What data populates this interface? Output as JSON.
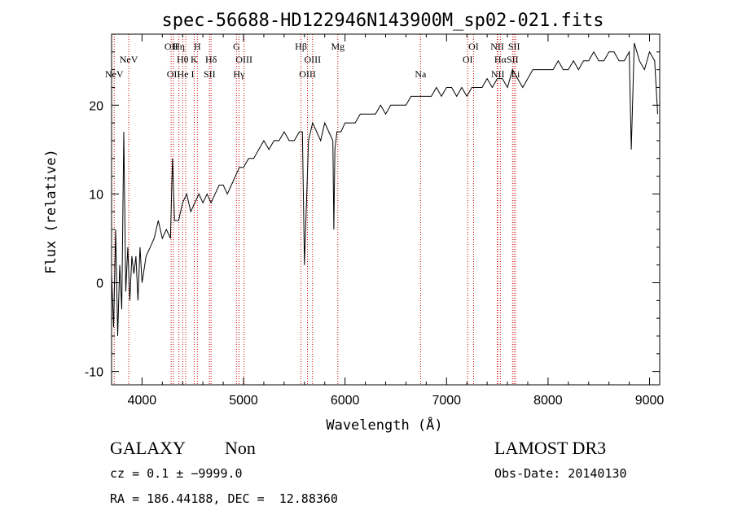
{
  "chart_data": {
    "type": "line",
    "title": "spec-56688-HD122946N143900M_sp02-021.fits",
    "xlabel": "Wavelength (Å)",
    "ylabel": "Flux (relative)",
    "xlim": [
      3700,
      9100
    ],
    "ylim": [
      -11.5,
      28
    ],
    "x_ticks": [
      4000,
      5000,
      6000,
      7000,
      8000,
      9000
    ],
    "y_ticks": [
      -10,
      0,
      10,
      20
    ],
    "line_color": "#cc0000",
    "series": [
      {
        "name": "flux",
        "x": [
          3700,
          3720,
          3740,
          3760,
          3780,
          3800,
          3820,
          3840,
          3860,
          3880,
          3900,
          3920,
          3940,
          3960,
          3980,
          4000,
          4040,
          4080,
          4120,
          4160,
          4200,
          4240,
          4280,
          4300,
          4320,
          4360,
          4400,
          4440,
          4480,
          4520,
          4560,
          4600,
          4640,
          4680,
          4720,
          4760,
          4800,
          4840,
          4880,
          4920,
          4960,
          5000,
          5050,
          5100,
          5150,
          5200,
          5250,
          5300,
          5350,
          5400,
          5450,
          5500,
          5550,
          5580,
          5600,
          5640,
          5680,
          5720,
          5760,
          5800,
          5840,
          5880,
          5890,
          5900,
          5920,
          5960,
          6000,
          6050,
          6100,
          6150,
          6200,
          6250,
          6300,
          6350,
          6400,
          6450,
          6500,
          6550,
          6600,
          6650,
          6700,
          6750,
          6800,
          6850,
          6900,
          6950,
          7000,
          7050,
          7100,
          7150,
          7200,
          7250,
          7300,
          7350,
          7400,
          7450,
          7500,
          7550,
          7600,
          7650,
          7700,
          7750,
          7800,
          7850,
          7900,
          7950,
          8000,
          8050,
          8100,
          8150,
          8200,
          8250,
          8300,
          8350,
          8400,
          8450,
          8500,
          8550,
          8600,
          8650,
          8700,
          8750,
          8800,
          8820,
          8850,
          8900,
          8950,
          9000,
          9050,
          9080
        ],
        "y": [
          1,
          -5,
          6,
          -6,
          2,
          -3,
          17,
          -1,
          4,
          -2,
          3,
          1,
          3,
          -2,
          4,
          0,
          3,
          4,
          5,
          7,
          5,
          6,
          5,
          14,
          7,
          7,
          9,
          10,
          8,
          9,
          10,
          9,
          10,
          9,
          10,
          11,
          11,
          10,
          11,
          12,
          13,
          13,
          14,
          14,
          15,
          16,
          15,
          16,
          16,
          17,
          16,
          16,
          17,
          17,
          2,
          16,
          18,
          17,
          16,
          18,
          17,
          16,
          6,
          15,
          17,
          17,
          18,
          18,
          18,
          19,
          19,
          19,
          19,
          20,
          19,
          20,
          20,
          20,
          20,
          21,
          21,
          21,
          21,
          21,
          22,
          21,
          22,
          22,
          21,
          22,
          21,
          22,
          22,
          22,
          23,
          22,
          23,
          23,
          22,
          24,
          23,
          22,
          23,
          24,
          24,
          24,
          24,
          24,
          25,
          24,
          24,
          25,
          24,
          25,
          25,
          26,
          25,
          25,
          26,
          26,
          25,
          25,
          26,
          15,
          27,
          25,
          24,
          26,
          25,
          19
        ]
      }
    ],
    "emission_lines": [
      {
        "label": "NeV",
        "wave": 3726,
        "row": 3
      },
      {
        "label": "NeV",
        "wave": 3869,
        "row": 2
      },
      {
        "label": "OII",
        "wave": 4287,
        "row": 1
      },
      {
        "label": "OII",
        "wave": 4310,
        "row": 3
      },
      {
        "label": "Hη",
        "wave": 4363,
        "row": 1
      },
      {
        "label": "Hθ",
        "wave": 4400,
        "row": 2
      },
      {
        "label": "He I",
        "wave": 4430,
        "row": 3
      },
      {
        "label": "H",
        "wave": 4545,
        "row": 1
      },
      {
        "label": "K",
        "wave": 4513,
        "row": 2
      },
      {
        "label": "Hδ",
        "wave": 4680,
        "row": 2
      },
      {
        "label": "SII",
        "wave": 4665,
        "row": 3
      },
      {
        "label": "G",
        "wave": 4930,
        "row": 1
      },
      {
        "label": "OIII",
        "wave": 5005,
        "row": 2
      },
      {
        "label": "Hγ",
        "wave": 4955,
        "row": 3
      },
      {
        "label": "Hβ",
        "wave": 5566,
        "row": 1
      },
      {
        "label": "OIII",
        "wave": 5680,
        "row": 2
      },
      {
        "label": "OIII",
        "wave": 5630,
        "row": 3
      },
      {
        "label": "Mg",
        "wave": 5929,
        "row": 1
      },
      {
        "label": "Na",
        "wave": 6744,
        "row": 3
      },
      {
        "label": "OI",
        "wave": 7266,
        "row": 1
      },
      {
        "label": "OI",
        "wave": 7208,
        "row": 2
      },
      {
        "label": "NII",
        "wave": 7500,
        "row": 1
      },
      {
        "label": "Hα",
        "wave": 7530,
        "row": 2
      },
      {
        "label": "NII",
        "wave": 7505,
        "row": 3
      },
      {
        "label": "SII",
        "wave": 7665,
        "row": 1
      },
      {
        "label": "SII",
        "wave": 7650,
        "row": 2
      },
      {
        "label": "Li",
        "wave": 7680,
        "row": 3
      }
    ]
  },
  "info": {
    "object_class": "GALAXY",
    "subclass": "Non",
    "redshift": "cz = 0.1 ± −9999.0",
    "coords": "RA = 186.44188, DEC =  12.88360",
    "survey": "LAMOST DR3",
    "obs_date": "Obs-Date: 20140130"
  }
}
